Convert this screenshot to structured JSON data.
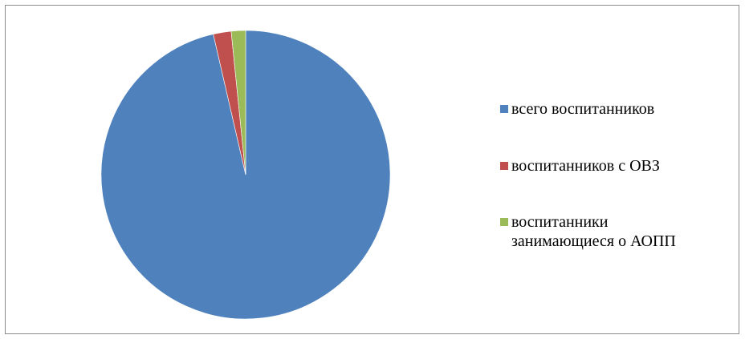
{
  "chart_data": {
    "type": "pie",
    "title": "",
    "categories": [
      "всего воспитанников",
      "воспитанников с ОВЗ",
      "воспитанники\nзанимающиеся о АОПП"
    ],
    "values": [
      96.4,
      2.0,
      1.6
    ],
    "colors": [
      "#4f81bd",
      "#c0504d",
      "#9bbb59"
    ],
    "start_angle_deg": 0,
    "direction": "clockwise",
    "legend_position": "right"
  }
}
